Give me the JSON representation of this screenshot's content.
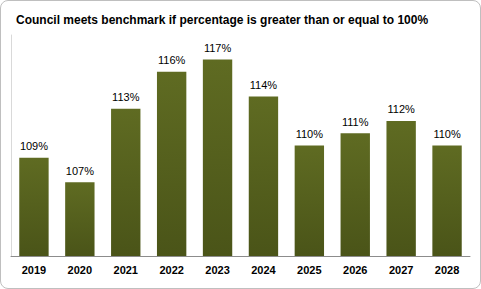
{
  "chart_data": {
    "type": "bar",
    "title": "Council meets benchmark if percentage is greater than or equal to 100%",
    "categories": [
      "2019",
      "2020",
      "2021",
      "2022",
      "2023",
      "2024",
      "2025",
      "2026",
      "2027",
      "2028"
    ],
    "values": [
      109,
      107,
      113,
      116,
      117,
      114,
      110,
      111,
      112,
      110
    ],
    "value_labels": [
      "109%",
      "107%",
      "113%",
      "116%",
      "117%",
      "114%",
      "110%",
      "111%",
      "112%",
      "110%"
    ],
    "color": "#5f6b22",
    "ylim": [
      101,
      119
    ],
    "grid": false,
    "data_labels": true,
    "tick_labels": "x"
  }
}
